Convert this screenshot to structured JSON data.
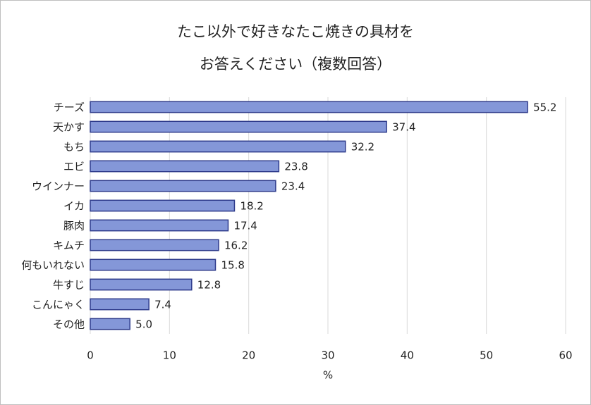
{
  "chart_data": {
    "type": "barh",
    "title": [
      "たこ以外で好きなたこ焼きの具材を",
      "お答えください（複数回答）"
    ],
    "categories": [
      "チーズ",
      "天かす",
      "もち",
      "エビ",
      "ウインナー",
      "イカ",
      "豚肉",
      "キムチ",
      "何もいれない",
      "牛すじ",
      "こんにゃく",
      "その他"
    ],
    "values": [
      55.2,
      37.4,
      32.2,
      23.8,
      23.4,
      18.2,
      17.4,
      16.2,
      15.8,
      12.8,
      7.4,
      5.0
    ],
    "value_labels": [
      "55.2",
      "37.4",
      "32.2",
      "23.8",
      "23.4",
      "18.2",
      "17.4",
      "16.2",
      "15.8",
      "12.8",
      "7.4",
      "5.0"
    ],
    "color": "#8497d8",
    "edge_color": "#2f3c8c",
    "xlabel": "%",
    "xlim": [
      0,
      60
    ],
    "xticks": [
      0,
      10,
      20,
      30,
      40,
      50,
      60
    ],
    "grid": true
  }
}
